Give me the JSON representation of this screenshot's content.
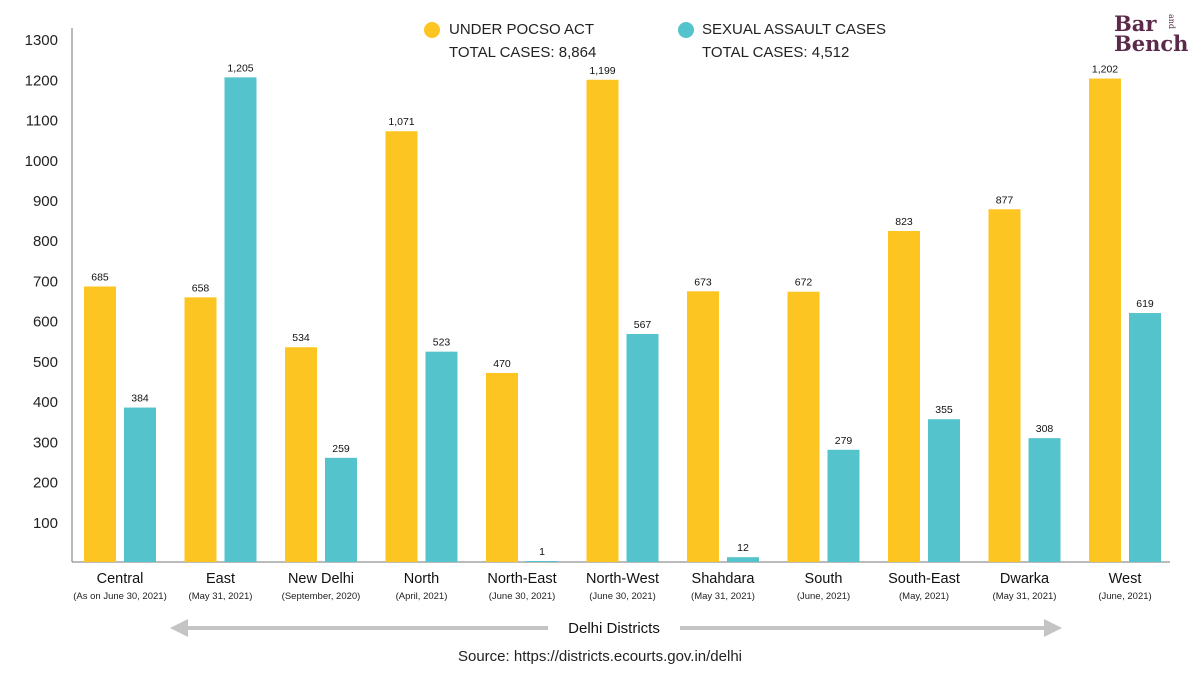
{
  "chart_data": {
    "type": "bar",
    "categories": [
      "Central",
      "East",
      "New Delhi",
      "North",
      "North-East",
      "North-West",
      "Shahdara",
      "South",
      "South-East",
      "Dwarka",
      "West"
    ],
    "category_sublabels": [
      "(As on June 30, 2021)",
      "(May 31, 2021)",
      "(September, 2020)",
      "(April, 2021)",
      "(June 30, 2021)",
      "(June 30, 2021)",
      "(May 31, 2021)",
      "(June, 2021)",
      "(May, 2021)",
      "(May 31, 2021)",
      "(June, 2021)"
    ],
    "series": [
      {
        "name": "UNDER POCSO ACT",
        "total_label": "TOTAL CASES: 8,864",
        "color": "#fcc521",
        "values": [
          685,
          658,
          534,
          1071,
          470,
          1199,
          673,
          672,
          823,
          877,
          1202
        ],
        "value_labels": [
          "685",
          "658",
          "534",
          "1,071",
          "470",
          "1,199",
          "673",
          "672",
          "823",
          "877",
          "1,202"
        ]
      },
      {
        "name": "SEXUAL ASSAULT CASES",
        "total_label": "TOTAL CASES: 4,512",
        "color": "#55c3cc",
        "values": [
          384,
          1205,
          259,
          523,
          1,
          567,
          12,
          279,
          355,
          308,
          619
        ],
        "value_labels": [
          "384",
          "1,205",
          "259",
          "523",
          "1",
          "567",
          "12",
          "279",
          "355",
          "308",
          "619"
        ]
      }
    ],
    "yticks": [
      100,
      200,
      300,
      400,
      500,
      600,
      700,
      800,
      900,
      1000,
      1100,
      1200,
      1300
    ],
    "ylim": [
      0,
      1300
    ],
    "xlabel": "Delhi Districts",
    "ylabel": "",
    "grid": false,
    "legend_position": "top-center"
  },
  "source": "Source: https://districts.ecourts.gov.in/delhi",
  "logo": {
    "line1": "Bar",
    "line2": "Bench",
    "small": "and"
  }
}
